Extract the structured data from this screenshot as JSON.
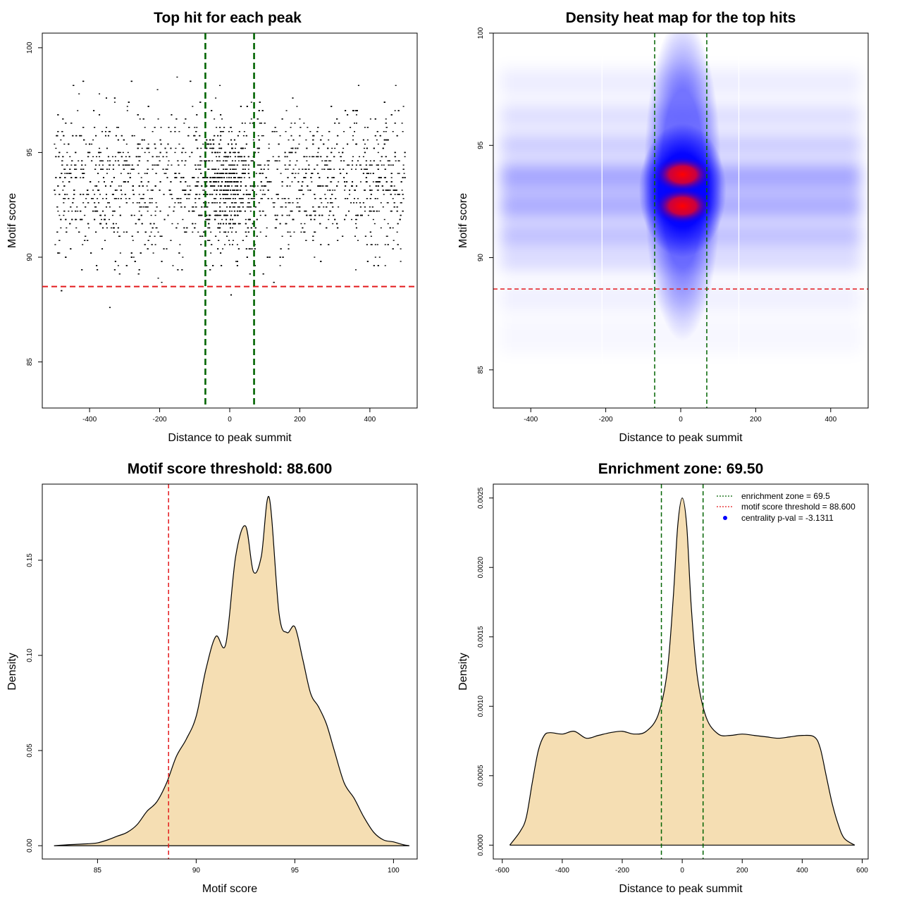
{
  "chart_data": [
    {
      "id": "scatter",
      "type": "scatter",
      "title": "Top hit for each peak",
      "xlabel": "Distance to peak summit",
      "ylabel": "Motif score",
      "xlim": [
        -535,
        535
      ],
      "ylim": [
        82.8,
        100.7
      ],
      "xticks": [
        "-400",
        "-200",
        "0",
        "200",
        "400"
      ],
      "xtick_values": [
        -400,
        -200,
        0,
        200,
        400
      ],
      "yticks": [
        "85",
        "90",
        "95",
        "100"
      ],
      "ytick_values": [
        85,
        90,
        95,
        100
      ],
      "x_range": [
        -500,
        500
      ],
      "y_range": [
        83.3,
        100
      ],
      "y_peak": 93.5,
      "threshold": 88.6,
      "enrichment_zone": [
        -69.5,
        69.5
      ],
      "threshold_color": "#e41a1c",
      "zone_color": "#006400",
      "point_color": "#000000"
    },
    {
      "id": "heatmap",
      "type": "heatmap",
      "title": "Density heat map for the top hits",
      "xlabel": "Distance to peak summit",
      "ylabel": "Motif score",
      "xlim": [
        -500,
        500
      ],
      "ylim": [
        83.3,
        100
      ],
      "xticks": [
        "-400",
        "-200",
        "0",
        "200",
        "400"
      ],
      "xtick_values": [
        -400,
        -200,
        0,
        200,
        400
      ],
      "yticks": [
        "85",
        "90",
        "95",
        "100"
      ],
      "ytick_values": [
        85,
        90,
        95,
        100
      ],
      "threshold": 88.6,
      "enrichment_zone": [
        -69.5,
        69.5
      ],
      "hot_spots": [
        {
          "x": 5,
          "y": 93.7
        },
        {
          "x": 5,
          "y": 92.3
        }
      ],
      "threshold_color": "#e41a1c",
      "zone_color": "#006400",
      "colors": [
        "#ffffff",
        "#0000ff",
        "#ff0000"
      ]
    },
    {
      "id": "score-density",
      "type": "area",
      "title": "Motif score threshold: 88.600",
      "xlabel": "Motif score",
      "ylabel": "Density",
      "xlim": [
        82.2,
        101.2
      ],
      "ylim": [
        -0.007,
        0.19
      ],
      "xticks": [
        "85",
        "90",
        "95",
        "100"
      ],
      "xtick_values": [
        85,
        90,
        95,
        100
      ],
      "yticks": [
        "0.00",
        "0.05",
        "0.10",
        "0.15"
      ],
      "ytick_values": [
        0,
        0.05,
        0.1,
        0.15
      ],
      "x": [
        82.8,
        83.5,
        84.5,
        85.0,
        85.5,
        86.0,
        86.5,
        87.0,
        87.5,
        88.0,
        88.5,
        89.0,
        89.5,
        90.0,
        90.5,
        91.0,
        91.5,
        92.0,
        92.5,
        92.9,
        93.3,
        93.7,
        94.2,
        94.6,
        95.0,
        95.4,
        95.8,
        96.2,
        96.6,
        97.0,
        97.5,
        98.0,
        98.5,
        99.0,
        99.5,
        100.0,
        100.5,
        100.8
      ],
      "y": [
        0.0,
        0.0005,
        0.001,
        0.0015,
        0.003,
        0.005,
        0.007,
        0.011,
        0.018,
        0.023,
        0.033,
        0.047,
        0.056,
        0.068,
        0.093,
        0.11,
        0.106,
        0.152,
        0.168,
        0.144,
        0.152,
        0.183,
        0.122,
        0.112,
        0.115,
        0.098,
        0.08,
        0.073,
        0.064,
        0.05,
        0.033,
        0.025,
        0.015,
        0.007,
        0.003,
        0.002,
        0.0005,
        0.0
      ],
      "threshold": 88.6,
      "fill_color": "#f5deb3",
      "line_color": "#000000",
      "threshold_color": "#e41a1c"
    },
    {
      "id": "distance-density",
      "type": "area",
      "title": "Enrichment zone: 69.50",
      "xlabel": "Distance to peak summit",
      "ylabel": "Density",
      "xlim": [
        -630,
        620
      ],
      "ylim": [
        -0.0001,
        0.0026
      ],
      "xticks": [
        "-600",
        "-400",
        "-200",
        "0",
        "200",
        "400",
        "600"
      ],
      "xtick_values": [
        -600,
        -400,
        -200,
        0,
        200,
        400,
        600
      ],
      "yticks": [
        "0.0000",
        "0.0005",
        "0.0010",
        "0.0015",
        "0.0020",
        "0.0025"
      ],
      "ytick_values": [
        0,
        0.0005,
        0.001,
        0.0015,
        0.002,
        0.0025
      ],
      "x": [
        -575,
        -540,
        -520,
        -500,
        -480,
        -460,
        -440,
        -400,
        -360,
        -320,
        -280,
        -240,
        -200,
        -160,
        -120,
        -80,
        -50,
        -30,
        -15,
        0,
        15,
        30,
        50,
        80,
        120,
        160,
        200,
        240,
        280,
        320,
        360,
        400,
        440,
        460,
        480,
        500,
        520,
        540,
        575
      ],
      "y": [
        0.0,
        0.0001,
        0.0002,
        0.00045,
        0.00068,
        0.00079,
        0.00081,
        0.0008,
        0.00082,
        0.00077,
        0.00079,
        0.00081,
        0.00082,
        0.0008,
        0.00082,
        0.00094,
        0.00125,
        0.00178,
        0.0023,
        0.0025,
        0.0023,
        0.00172,
        0.00122,
        0.00092,
        0.0008,
        0.00079,
        0.0008,
        0.00079,
        0.00078,
        0.00077,
        0.00078,
        0.00079,
        0.00078,
        0.0007,
        0.0005,
        0.0003,
        0.00015,
        5e-05,
        0.0
      ],
      "enrichment_zone": [
        -69.5,
        69.5
      ],
      "fill_color": "#f5deb3",
      "line_color": "#000000",
      "zone_color": "#006400",
      "legend": {
        "position": "top-right",
        "entries": [
          {
            "label": "enrichment zone = 69.5",
            "color": "#006400",
            "style": "dotted-line"
          },
          {
            "label": "motif score threshold = 88.600",
            "color": "#e41a1c",
            "style": "dotted-line"
          },
          {
            "label": "centrality p-val = -3.1311",
            "color": "#0000ff",
            "style": "point"
          }
        ]
      }
    }
  ]
}
